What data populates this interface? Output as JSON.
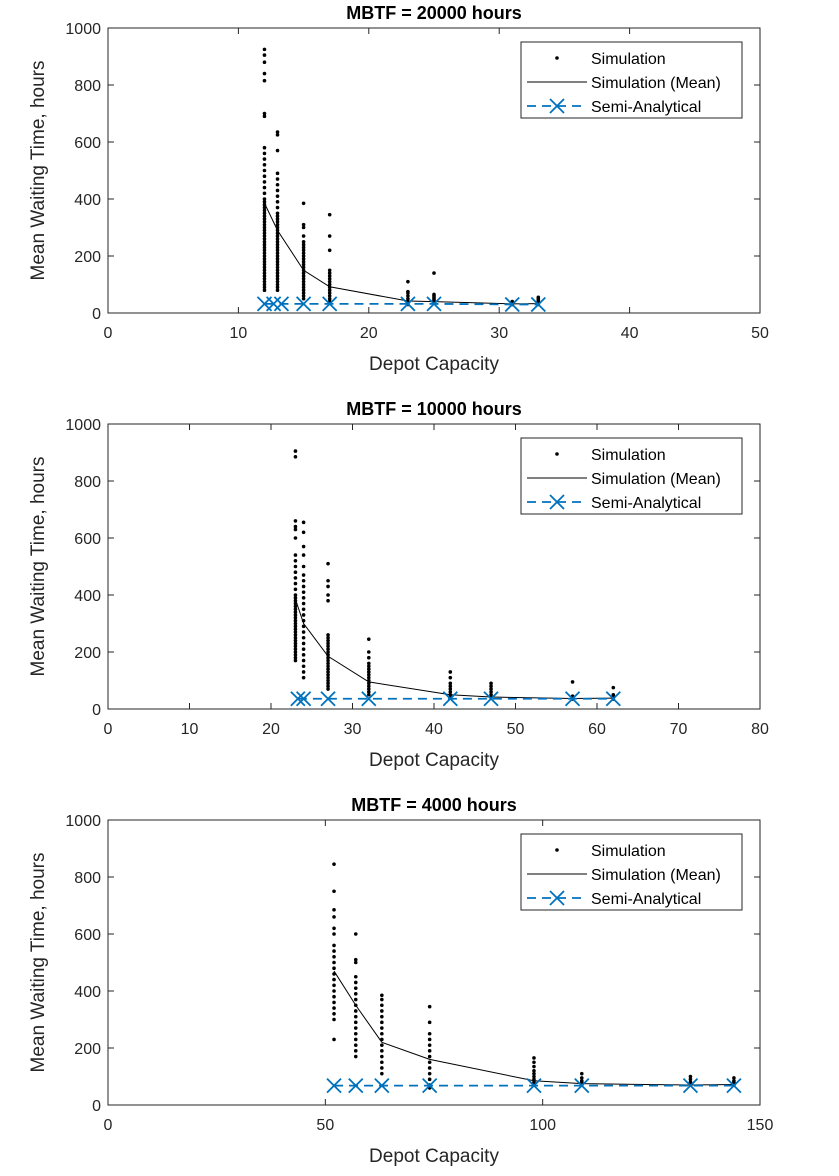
{
  "figure": {
    "background": "#ffffff"
  },
  "chart_data": [
    {
      "type": "scatter",
      "title": "MBTF = 20000 hours",
      "xlabel": "Depot Capacity",
      "ylabel": "Mean Waiting Time, hours",
      "xlim": [
        0,
        50
      ],
      "ylim": [
        0,
        1000
      ],
      "xticks": [
        0,
        10,
        20,
        30,
        40,
        50
      ],
      "yticks": [
        0,
        200,
        400,
        600,
        800,
        1000
      ],
      "legend": {
        "placement": "top-right",
        "entries": [
          "Simulation",
          "Simulation (Mean)",
          "Semi-Analytical"
        ]
      },
      "series": [
        {
          "name": "Simulation",
          "color": "#000000",
          "marker": "dot",
          "groups": [
            {
              "x": 12,
              "y": [
                925,
                905,
                880,
                840,
                815,
                700,
                690,
                580,
                560,
                540,
                520,
                500,
                480,
                460,
                440,
                420,
                400,
                390,
                380,
                370,
                360,
                350,
                340,
                330,
                320,
                310,
                300,
                290,
                280,
                270,
                260,
                250,
                240,
                230,
                220,
                210,
                200,
                190,
                180,
                170,
                160,
                150,
                140,
                130,
                120,
                110,
                100,
                90,
                80
              ]
            },
            {
              "x": 13,
              "y": [
                635,
                625,
                570,
                490,
                470,
                450,
                430,
                410,
                390,
                370,
                350,
                340,
                330,
                320,
                310,
                300,
                290,
                280,
                270,
                260,
                250,
                240,
                230,
                220,
                210,
                200,
                190,
                180,
                170,
                160,
                150,
                140,
                130,
                120,
                110,
                100,
                90,
                80
              ]
            },
            {
              "x": 15,
              "y": [
                385,
                310,
                300,
                270,
                250,
                240,
                230,
                220,
                210,
                200,
                190,
                180,
                170,
                160,
                150,
                140,
                130,
                120,
                110,
                100,
                90,
                80,
                70,
                60,
                50
              ]
            },
            {
              "x": 17,
              "y": [
                345,
                270,
                220,
                150,
                140,
                130,
                120,
                110,
                100,
                90,
                80,
                70,
                60,
                50,
                40
              ]
            },
            {
              "x": 23,
              "y": [
                110,
                75,
                70,
                60,
                50,
                40,
                35,
                30
              ]
            },
            {
              "x": 25,
              "y": [
                140,
                65,
                60,
                55,
                50,
                45,
                40,
                35
              ]
            },
            {
              "x": 31,
              "y": [
                40,
                35,
                32,
                30
              ]
            },
            {
              "x": 33,
              "y": [
                55,
                50,
                45,
                40,
                35,
                30
              ]
            }
          ]
        },
        {
          "name": "Simulation (Mean)",
          "color": "#000000",
          "x": [
            12,
            13,
            15,
            17,
            23,
            25,
            31,
            33
          ],
          "y": [
            385,
            290,
            150,
            92,
            42,
            40,
            32,
            33
          ]
        },
        {
          "name": "Semi-Analytical",
          "color": "#0072BD",
          "x": [
            12,
            12.7,
            13.3,
            15,
            17,
            23,
            25,
            31,
            33
          ],
          "y": [
            32,
            32,
            32,
            32,
            32,
            32,
            32,
            30,
            30
          ]
        }
      ]
    },
    {
      "type": "scatter",
      "title": "MBTF = 10000 hours",
      "xlabel": "Depot Capacity",
      "ylabel": "Mean Waiting Time, hours",
      "xlim": [
        0,
        80
      ],
      "ylim": [
        0,
        1000
      ],
      "xticks": [
        0,
        10,
        20,
        30,
        40,
        50,
        60,
        70,
        80
      ],
      "yticks": [
        0,
        200,
        400,
        600,
        800,
        1000
      ],
      "legend": {
        "placement": "top-right",
        "entries": [
          "Simulation",
          "Simulation (Mean)",
          "Semi-Analytical"
        ]
      },
      "series": [
        {
          "name": "Simulation",
          "color": "#000000",
          "marker": "dot",
          "groups": [
            {
              "x": 23,
              "y": [
                905,
                885,
                660,
                640,
                630,
                600,
                540,
                520,
                500,
                480,
                460,
                440,
                420,
                400,
                390,
                380,
                370,
                360,
                350,
                340,
                330,
                320,
                310,
                300,
                290,
                280,
                270,
                260,
                250,
                240,
                230,
                220,
                210,
                200,
                190,
                180,
                170
              ]
            },
            {
              "x": 24,
              "y": [
                655,
                620,
                570,
                540,
                500,
                470,
                450,
                430,
                410,
                390,
                370,
                350,
                330,
                310,
                290,
                270,
                250,
                230,
                210,
                190,
                170,
                150,
                130,
                110
              ]
            },
            {
              "x": 27,
              "y": [
                510,
                450,
                430,
                400,
                380,
                260,
                250,
                240,
                230,
                220,
                210,
                200,
                190,
                180,
                170,
                160,
                150,
                140,
                130,
                120,
                110,
                100,
                90,
                80,
                70
              ]
            },
            {
              "x": 32,
              "y": [
                245,
                200,
                180,
                160,
                150,
                140,
                130,
                120,
                110,
                100,
                90,
                80,
                70,
                60,
                50
              ]
            },
            {
              "x": 42,
              "y": [
                130,
                110,
                90,
                80,
                70,
                60,
                50,
                40
              ]
            },
            {
              "x": 47,
              "y": [
                90,
                80,
                70,
                60,
                50,
                40
              ]
            },
            {
              "x": 57,
              "y": [
                95,
                45,
                40,
                35
              ]
            },
            {
              "x": 62,
              "y": [
                75,
                50,
                45,
                40,
                35
              ]
            }
          ]
        },
        {
          "name": "Simulation (Mean)",
          "color": "#000000",
          "x": [
            23,
            24,
            27,
            32,
            42,
            47,
            57,
            62
          ],
          "y": [
            385,
            300,
            185,
            95,
            50,
            42,
            37,
            38
          ]
        },
        {
          "name": "Semi-Analytical",
          "color": "#0072BD",
          "x": [
            23.3,
            24,
            27,
            32,
            42,
            47,
            57,
            62
          ],
          "y": [
            36,
            36,
            36,
            36,
            36,
            36,
            36,
            36
          ]
        }
      ]
    },
    {
      "type": "scatter",
      "title": "MBTF = 4000 hours",
      "xlabel": "Depot Capacity",
      "ylabel": "Mean Waiting Time, hours",
      "xlim": [
        0,
        150
      ],
      "ylim": [
        0,
        1000
      ],
      "xticks": [
        0,
        50,
        100,
        150
      ],
      "yticks": [
        0,
        200,
        400,
        600,
        800,
        1000
      ],
      "legend": {
        "placement": "top-right",
        "entries": [
          "Simulation",
          "Simulation (Mean)",
          "Semi-Analytical"
        ]
      },
      "series": [
        {
          "name": "Simulation",
          "color": "#000000",
          "marker": "dot",
          "groups": [
            {
              "x": 52,
              "y": [
                845,
                750,
                685,
                660,
                620,
                600,
                560,
                540,
                520,
                500,
                480,
                460,
                440,
                420,
                400,
                380,
                360,
                340,
                320,
                300,
                230
              ]
            },
            {
              "x": 57,
              "y": [
                600,
                510,
                500,
                450,
                430,
                410,
                390,
                370,
                350,
                330,
                310,
                290,
                270,
                250,
                230,
                210,
                190,
                170
              ]
            },
            {
              "x": 63,
              "y": [
                385,
                370,
                350,
                330,
                310,
                290,
                270,
                250,
                230,
                210,
                190,
                170,
                150,
                130,
                110
              ]
            },
            {
              "x": 74,
              "y": [
                345,
                290,
                250,
                230,
                210,
                190,
                170,
                150,
                130,
                110,
                90,
                70,
                60
              ]
            },
            {
              "x": 98,
              "y": [
                165,
                150,
                135,
                120,
                110,
                100,
                90,
                80,
                70
              ]
            },
            {
              "x": 109,
              "y": [
                110,
                95,
                85,
                80,
                75,
                70
              ]
            },
            {
              "x": 134,
              "y": [
                100,
                90,
                80,
                75,
                70
              ]
            },
            {
              "x": 144,
              "y": [
                95,
                85,
                80,
                75,
                70
              ]
            }
          ]
        },
        {
          "name": "Simulation (Mean)",
          "color": "#000000",
          "x": [
            52,
            57,
            63,
            74,
            98,
            109,
            134,
            144
          ],
          "y": [
            470,
            350,
            220,
            160,
            85,
            75,
            70,
            72
          ]
        },
        {
          "name": "Semi-Analytical",
          "color": "#0072BD",
          "x": [
            52,
            57,
            63,
            74,
            98,
            109,
            134,
            144
          ],
          "y": [
            68,
            68,
            68,
            68,
            68,
            68,
            68,
            68
          ]
        }
      ]
    }
  ]
}
